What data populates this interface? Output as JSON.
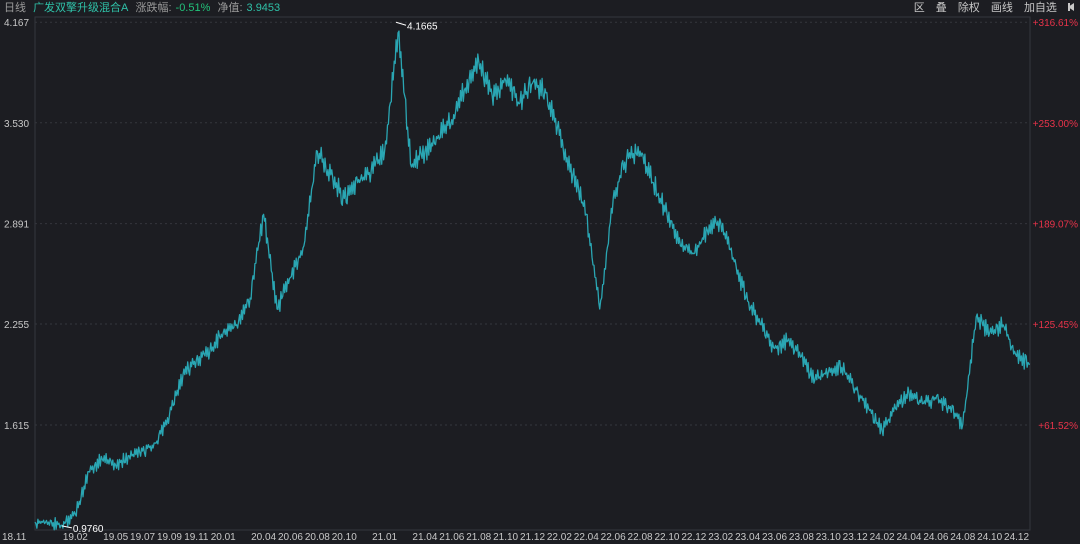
{
  "header": {
    "period": "日线",
    "fund_name": "广发双擎升级混合A",
    "change_label": "涨跌幅:",
    "change_value": "-0.51%",
    "nav_label": "净值:",
    "nav_value": "3.9453",
    "tools": [
      "区",
      "叠",
      "除权",
      "画线",
      "加自选"
    ]
  },
  "colors": {
    "line": "#2aa6b3",
    "up_pct": "#e8334a",
    "background": "#1c1d22",
    "grid": "#34363d"
  },
  "chart_data": {
    "type": "line",
    "x_ticks": [
      "18.11",
      "19.02",
      "19.05",
      "19.07",
      "19.09",
      "19.11",
      "20.01",
      "20.04",
      "20.06",
      "20.08",
      "20.10",
      "21.01",
      "21.04",
      "21.06",
      "21.08",
      "21.10",
      "21.12",
      "22.02",
      "22.04",
      "22.06",
      "22.08",
      "22.10",
      "22.12",
      "23.02",
      "23.04",
      "23.06",
      "23.08",
      "23.10",
      "23.12",
      "24.02",
      "24.04",
      "24.06",
      "24.08",
      "24.10",
      "24.12"
    ],
    "y_ticks": [
      4.167,
      3.53,
      2.891,
      2.255,
      1.615
    ],
    "y_tick_labels": [
      "4.167",
      "3.530",
      "2.891",
      "2.255",
      "1.615"
    ],
    "pct_ticks": [
      "+316.61%",
      "+253.00%",
      "+189.07%",
      "+125.45%",
      "+61.52%"
    ],
    "ylim": [
      0.95,
      4.2
    ],
    "annotations": {
      "max": "4.1665",
      "min": "0.9760"
    },
    "series": [
      {
        "values": [
          [
            "18.11",
            1.0
          ],
          [
            "18.12",
            1.0
          ],
          [
            "19.01",
            0.98
          ],
          [
            "19.02",
            1.05
          ],
          [
            "19.03",
            1.32
          ],
          [
            "19.04",
            1.4
          ],
          [
            "19.05",
            1.36
          ],
          [
            "19.06",
            1.42
          ],
          [
            "19.07",
            1.45
          ],
          [
            "19.08",
            1.5
          ],
          [
            "19.09",
            1.68
          ],
          [
            "19.10",
            1.93
          ],
          [
            "19.11",
            2.03
          ],
          [
            "19.12",
            2.08
          ],
          [
            "20.01",
            2.2
          ],
          [
            "20.02",
            2.25
          ],
          [
            "20.03",
            2.42
          ],
          [
            "20.04",
            2.95
          ],
          [
            "20.05",
            2.35
          ],
          [
            "20.06",
            2.55
          ],
          [
            "20.07",
            2.75
          ],
          [
            "20.08",
            3.35
          ],
          [
            "20.09",
            3.2
          ],
          [
            "20.10",
            3.05
          ],
          [
            "20.11",
            3.15
          ],
          [
            "20.12",
            3.22
          ],
          [
            "21.01",
            3.35
          ],
          [
            "21.02",
            4.1
          ],
          [
            "21.03",
            3.25
          ],
          [
            "21.04",
            3.35
          ],
          [
            "21.05",
            3.45
          ],
          [
            "21.06",
            3.55
          ],
          [
            "21.07",
            3.75
          ],
          [
            "21.08",
            3.92
          ],
          [
            "21.09",
            3.7
          ],
          [
            "21.10",
            3.8
          ],
          [
            "21.11",
            3.65
          ],
          [
            "21.12",
            3.78
          ],
          [
            "22.01",
            3.72
          ],
          [
            "22.02",
            3.45
          ],
          [
            "22.03",
            3.2
          ],
          [
            "22.04",
            2.95
          ],
          [
            "22.05",
            2.35
          ],
          [
            "22.06",
            3.05
          ],
          [
            "22.07",
            3.3
          ],
          [
            "22.08",
            3.35
          ],
          [
            "22.09",
            3.15
          ],
          [
            "22.10",
            2.95
          ],
          [
            "22.11",
            2.75
          ],
          [
            "22.12",
            2.7
          ],
          [
            "23.01",
            2.85
          ],
          [
            "23.02",
            2.9
          ],
          [
            "23.03",
            2.65
          ],
          [
            "23.04",
            2.4
          ],
          [
            "23.05",
            2.25
          ],
          [
            "23.06",
            2.1
          ],
          [
            "23.07",
            2.15
          ],
          [
            "23.08",
            2.05
          ],
          [
            "23.09",
            1.9
          ],
          [
            "23.10",
            1.95
          ],
          [
            "23.11",
            1.98
          ],
          [
            "23.12",
            1.85
          ],
          [
            "24.01",
            1.72
          ],
          [
            "24.02",
            1.58
          ],
          [
            "24.03",
            1.72
          ],
          [
            "24.04",
            1.82
          ],
          [
            "24.05",
            1.75
          ],
          [
            "24.06",
            1.78
          ],
          [
            "24.07",
            1.72
          ],
          [
            "24.08",
            1.62
          ],
          [
            "24.09",
            2.3
          ],
          [
            "24.10",
            2.2
          ],
          [
            "24.11",
            2.25
          ],
          [
            "24.12",
            2.05
          ],
          [
            "25.01",
            2.0
          ]
        ]
      }
    ]
  }
}
